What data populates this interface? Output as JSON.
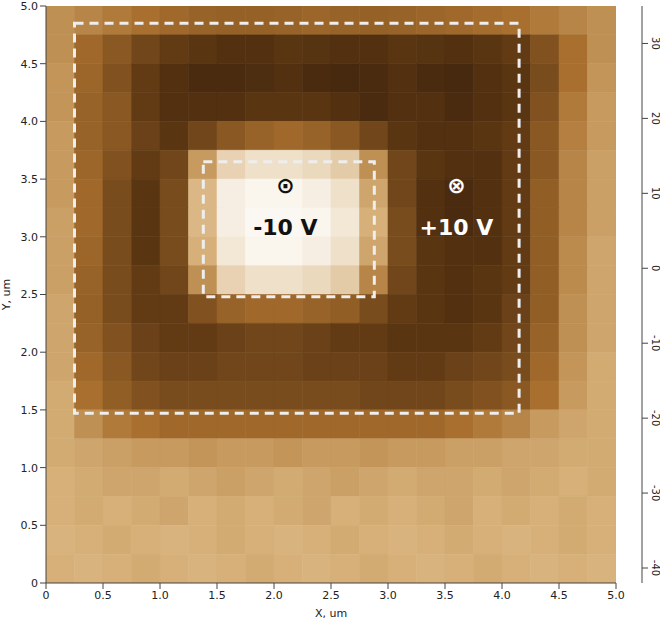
{
  "chart_data": {
    "type": "heatmap",
    "x_label": "X, um",
    "y_label": "Y, um",
    "xlim": [
      0,
      5
    ],
    "ylim": [
      0,
      5
    ],
    "xticks": [
      0,
      0.5,
      {
        "value": 1,
        "label": "1.0"
      },
      1.5,
      {
        "value": 2,
        "label": "2.0"
      },
      2.5,
      {
        "value": 3,
        "label": "3.0"
      },
      3.5,
      {
        "value": 4,
        "label": "4.0"
      },
      4.5,
      {
        "value": 5,
        "label": "5.0"
      }
    ],
    "yticks": [
      0,
      0.5,
      {
        "value": 1,
        "label": "1.0"
      },
      1.5,
      {
        "value": 2,
        "label": "2.0"
      },
      2.5,
      {
        "value": 3,
        "label": "3.0"
      },
      3.5,
      {
        "value": 4,
        "label": "4.0"
      },
      4.5,
      {
        "value": 5,
        "label": "5.0"
      }
    ],
    "x": [
      0.125,
      0.375,
      0.625,
      0.875,
      1.125,
      1.375,
      1.625,
      1.875,
      2.125,
      2.375,
      2.625,
      2.875,
      3.125,
      3.375,
      3.625,
      3.875,
      4.125,
      4.375,
      4.625,
      4.875
    ],
    "y": [
      4.875,
      4.625,
      4.375,
      4.125,
      3.875,
      3.625,
      3.375,
      3.125,
      2.875,
      2.625,
      2.375,
      2.125,
      1.875,
      1.625,
      1.375,
      1.125,
      0.875,
      0.625,
      0.375,
      0.125
    ],
    "cells": [
      [
        6,
        4,
        2,
        0,
        -2,
        -4,
        -5,
        -5,
        -4,
        -3,
        -4,
        -5,
        -4,
        -3,
        -2,
        -1,
        0,
        2,
        4,
        6
      ],
      [
        6,
        -2,
        -8,
        -14,
        -18,
        -20,
        -22,
        -22,
        -20,
        -21,
        -22,
        -22,
        -20,
        -21,
        -22,
        -20,
        -18,
        -10,
        0,
        6
      ],
      [
        7,
        -3,
        -10,
        -18,
        -22,
        -24,
        -24,
        -23,
        -22,
        -24,
        -25,
        -24,
        -22,
        -24,
        -25,
        -22,
        -20,
        -12,
        0,
        7
      ],
      [
        7,
        -4,
        -8,
        -18,
        -22,
        -22,
        -22,
        -20,
        -20,
        -20,
        -22,
        -24,
        -22,
        -22,
        -24,
        -22,
        -20,
        -10,
        2,
        8
      ],
      [
        8,
        -4,
        -8,
        -16,
        -20,
        -14,
        -8,
        -4,
        -2,
        -4,
        -8,
        -14,
        -20,
        -22,
        -22,
        -20,
        -18,
        -8,
        3,
        8
      ],
      [
        8,
        -3,
        -10,
        -18,
        -14,
        8,
        22,
        26,
        26,
        24,
        20,
        6,
        -14,
        -20,
        -22,
        -22,
        -18,
        -8,
        4,
        9
      ],
      [
        8,
        -2,
        -12,
        -20,
        -12,
        14,
        30,
        32,
        32,
        30,
        26,
        10,
        -14,
        -22,
        -24,
        -22,
        -18,
        -6,
        4,
        9
      ],
      [
        9,
        -2,
        -12,
        -20,
        -12,
        14,
        30,
        33,
        33,
        32,
        28,
        12,
        -12,
        -22,
        -24,
        -22,
        -18,
        -6,
        4,
        9
      ],
      [
        9,
        -3,
        -12,
        -20,
        -12,
        12,
        28,
        32,
        32,
        30,
        26,
        10,
        -12,
        -20,
        -22,
        -22,
        -18,
        -6,
        5,
        10
      ],
      [
        9,
        -4,
        -12,
        -18,
        -14,
        6,
        22,
        26,
        26,
        24,
        20,
        4,
        -14,
        -20,
        -22,
        -20,
        -18,
        -6,
        5,
        10
      ],
      [
        10,
        -5,
        -12,
        -18,
        -18,
        -10,
        -4,
        -2,
        -2,
        -4,
        -6,
        -12,
        -18,
        -20,
        -22,
        -20,
        -16,
        -6,
        6,
        10
      ],
      [
        10,
        -4,
        -10,
        -16,
        -18,
        -18,
        -16,
        -14,
        -14,
        -16,
        -18,
        -18,
        -20,
        -20,
        -20,
        -18,
        -14,
        -4,
        6,
        10
      ],
      [
        10,
        -2,
        -8,
        -14,
        -16,
        -16,
        -14,
        -14,
        -14,
        -16,
        -16,
        -16,
        -18,
        -18,
        -16,
        -14,
        -12,
        -2,
        7,
        11
      ],
      [
        11,
        0,
        -6,
        -10,
        -12,
        -12,
        -12,
        -12,
        -12,
        -12,
        -12,
        -14,
        -14,
        -14,
        -12,
        -10,
        -8,
        0,
        8,
        11
      ],
      [
        11,
        6,
        2,
        0,
        -2,
        -2,
        -2,
        -2,
        -2,
        -2,
        -2,
        -2,
        -2,
        -2,
        0,
        2,
        4,
        8,
        10,
        11
      ],
      [
        11,
        10,
        9,
        8,
        8,
        7,
        8,
        8,
        7,
        8,
        8,
        7,
        8,
        8,
        9,
        9,
        10,
        10,
        11,
        11
      ],
      [
        12,
        11,
        10,
        10,
        11,
        10,
        9,
        10,
        11,
        10,
        9,
        10,
        11,
        10,
        10,
        11,
        10,
        11,
        12,
        11
      ],
      [
        12,
        11,
        12,
        11,
        10,
        12,
        11,
        12,
        11,
        10,
        12,
        11,
        12,
        11,
        10,
        12,
        11,
        12,
        11,
        12
      ],
      [
        13,
        12,
        11,
        12,
        13,
        12,
        11,
        12,
        13,
        12,
        11,
        12,
        13,
        12,
        11,
        12,
        13,
        12,
        11,
        12
      ],
      [
        12,
        13,
        12,
        11,
        12,
        13,
        12,
        11,
        12,
        13,
        12,
        11,
        12,
        13,
        12,
        11,
        12,
        13,
        12,
        13
      ]
    ],
    "colorscale": [
      [
        -42,
        "#000000"
      ],
      [
        -20,
        "#5a3512"
      ],
      [
        0,
        "#a86f2e"
      ],
      [
        12,
        "#d6b078"
      ],
      [
        35,
        "#ffffff"
      ]
    ],
    "colorbar_range": [
      -42,
      35
    ],
    "colorbar_ticks": [
      -40,
      -30,
      -20,
      -10,
      0,
      10,
      20,
      30
    ],
    "boxes": [
      {
        "x1": 0.25,
        "x2": 4.15,
        "y1": 1.47,
        "y2": 4.85
      },
      {
        "x1": 1.38,
        "x2": 2.88,
        "y1": 2.48,
        "y2": 3.65
      }
    ],
    "annotations": [
      {
        "text": "⊙",
        "x": 2.1,
        "y": 3.45,
        "color": "#111111"
      },
      {
        "text": "-10 V",
        "x": 2.1,
        "y": 3.08,
        "color": "#111111"
      },
      {
        "text": "⊗",
        "x": 3.6,
        "y": 3.45,
        "color": "#ffffff"
      },
      {
        "text": "+10 V",
        "x": 3.6,
        "y": 3.08,
        "color": "#ffffff"
      }
    ]
  }
}
